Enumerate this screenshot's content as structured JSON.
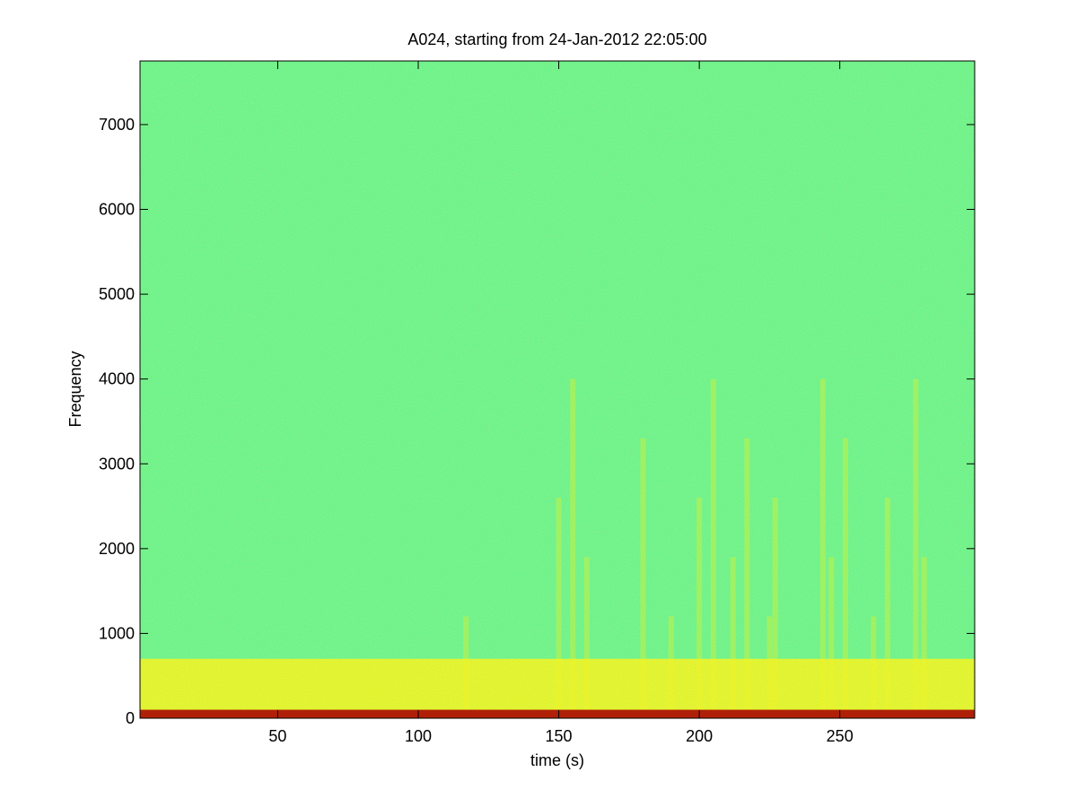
{
  "chart_data": {
    "type": "heatmap",
    "title": "A024, starting from 24-Jan-2012 22:05:00",
    "xlabel": "time (s)",
    "ylabel": "Frequency",
    "xlim": [
      1,
      298
    ],
    "ylim": [
      0,
      7750
    ],
    "xticks": [
      50,
      100,
      150,
      200,
      250
    ],
    "yticks": [
      0,
      1000,
      2000,
      3000,
      4000,
      5000,
      6000,
      7000
    ],
    "grid": false,
    "colormap": "jet",
    "colors": {
      "background_level": "#6cf28a",
      "low_freq_band": "#f2f21a",
      "lowest_freq_band": "#b02008",
      "frame": "#000000"
    },
    "features": {
      "low_frequency_band_max_hz": 700,
      "dominant_band_max_hz": 100,
      "vertical_streak_times_s": [
        117,
        150,
        155,
        160,
        180,
        190,
        200,
        205,
        212,
        217,
        225,
        227,
        244,
        247,
        252,
        262,
        267,
        277,
        280
      ]
    }
  }
}
